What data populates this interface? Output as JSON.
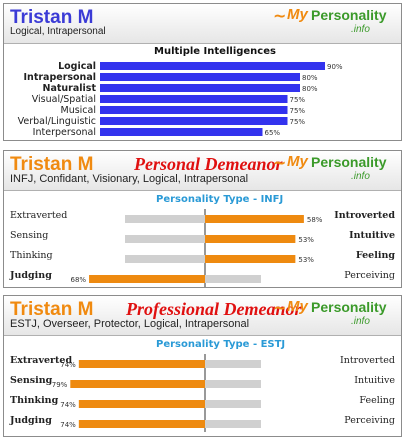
{
  "brand": {
    "smile": "~",
    "my": "My",
    "personality": "Personality",
    "tld": ".info"
  },
  "colors": {
    "intel_bar": "#3333ee",
    "type_bar": "#ee8a10",
    "type_bg": "#d0d0d0",
    "name_blue": "#3b3bd6",
    "name_orange": "#f08a10",
    "demeanor_red": "#e01010"
  },
  "cards": [
    {
      "name": "Tristan M",
      "subtitle": "Logical, Intrapersonal",
      "title": "",
      "chart_title": "Multiple Intelligences"
    },
    {
      "name": "Tristan M",
      "subtitle": "INFJ, Confidant, Visionary, Logical, Intrapersonal",
      "title": "Personal Demeanor",
      "chart_title": "Personality Type - INFJ"
    },
    {
      "name": "Tristan M",
      "subtitle": "ESTJ, Overseer, Protector, Logical, Intrapersonal",
      "title": "Professional Demeanor",
      "chart_title": "Personality Type - ESTJ"
    }
  ],
  "chart_data": [
    {
      "type": "bar",
      "orientation": "horizontal",
      "title": "Multiple Intelligences",
      "categories": [
        "Logical",
        "Intrapersonal",
        "Naturalist",
        "Visual/Spatial",
        "Musical",
        "Verbal/Linguistic",
        "Interpersonal"
      ],
      "bold": [
        true,
        true,
        true,
        false,
        false,
        false,
        false
      ],
      "values": [
        90,
        80,
        80,
        75,
        75,
        75,
        65
      ],
      "value_labels": [
        "90%",
        "80%",
        "80%",
        "75%",
        "75%",
        "75%",
        "65%"
      ],
      "xlim": [
        0,
        100
      ]
    },
    {
      "type": "bar",
      "orientation": "diverging",
      "title": "Personality Type - INFJ",
      "rows": [
        {
          "left": "Extraverted",
          "right": "Introverted",
          "side": "right",
          "value": 58,
          "label": "58%",
          "left_bold": false,
          "right_bold": true
        },
        {
          "left": "Sensing",
          "right": "Intuitive",
          "side": "right",
          "value": 53,
          "label": "53%",
          "left_bold": false,
          "right_bold": true
        },
        {
          "left": "Thinking",
          "right": "Feeling",
          "side": "right",
          "value": 53,
          "label": "53%",
          "left_bold": false,
          "right_bold": true
        },
        {
          "left": "Judging",
          "right": "Perceiving",
          "side": "left",
          "value": 68,
          "label": "68%",
          "left_bold": true,
          "right_bold": false
        }
      ]
    },
    {
      "type": "bar",
      "orientation": "diverging",
      "title": "Personality Type - ESTJ",
      "rows": [
        {
          "left": "Extraverted",
          "right": "Introverted",
          "side": "left",
          "value": 74,
          "label": "74%",
          "left_bold": true,
          "right_bold": false
        },
        {
          "left": "Sensing",
          "right": "Intuitive",
          "side": "left",
          "value": 79,
          "label": "79%",
          "left_bold": true,
          "right_bold": false
        },
        {
          "left": "Thinking",
          "right": "Feeling",
          "side": "left",
          "value": 74,
          "label": "74%",
          "left_bold": true,
          "right_bold": false
        },
        {
          "left": "Judging",
          "right": "Perceiving",
          "side": "left",
          "value": 74,
          "label": "74%",
          "left_bold": true,
          "right_bold": false
        }
      ]
    }
  ]
}
